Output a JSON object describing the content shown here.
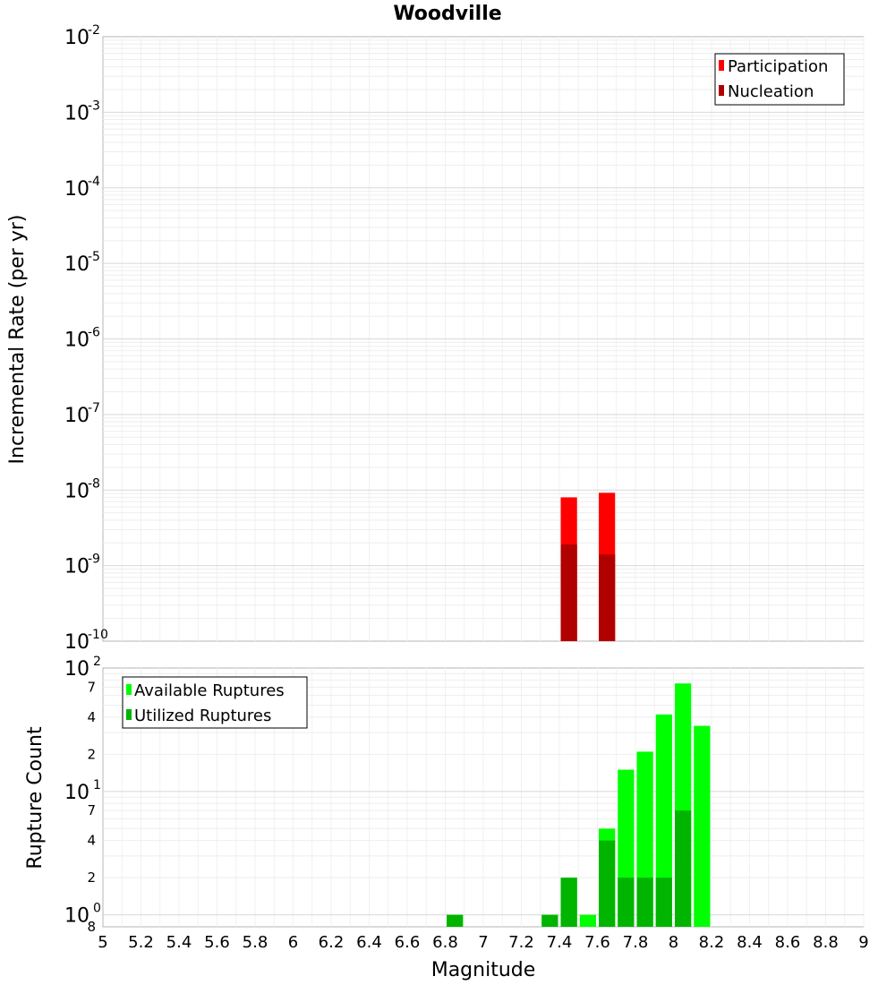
{
  "title": "Woodville",
  "xlabel": "Magnitude",
  "chart_data": [
    {
      "type": "bar",
      "yscale": "log",
      "ylabel": "Incremental Rate (per yr)",
      "ylim": [
        1e-10,
        0.01
      ],
      "xlim": [
        5,
        9
      ],
      "y_tick_labels": [
        {
          "base": "10",
          "exp": "-2"
        },
        {
          "base": "10",
          "exp": "-3"
        },
        {
          "base": "10",
          "exp": "-4"
        },
        {
          "base": "10",
          "exp": "-5"
        },
        {
          "base": "10",
          "exp": "-6"
        },
        {
          "base": "10",
          "exp": "-7"
        },
        {
          "base": "10",
          "exp": "-8"
        },
        {
          "base": "10",
          "exp": "-9"
        },
        {
          "base": "10",
          "exp": "-10"
        }
      ],
      "legend_position": "top-right",
      "series": [
        {
          "name": "Participation",
          "color": "#ff0000",
          "x": [
            7.45,
            7.65
          ],
          "values": [
            8e-09,
            9.2e-09
          ]
        },
        {
          "name": "Nucleation",
          "color": "#b00000",
          "x": [
            7.45,
            7.65
          ],
          "values": [
            1.9e-09,
            1.4e-09
          ]
        }
      ]
    },
    {
      "type": "bar",
      "yscale": "log",
      "ylabel": "Rupture Count",
      "ylim": [
        0.8,
        100
      ],
      "xlim": [
        5,
        9
      ],
      "y_tick_labels": [
        {
          "value": 100,
          "base": "10",
          "exp": "2"
        },
        {
          "value": 70,
          "label": "7"
        },
        {
          "value": 40,
          "label": "4"
        },
        {
          "value": 20,
          "label": "2"
        },
        {
          "value": 10,
          "base": "10",
          "exp": "1"
        },
        {
          "value": 7,
          "label": "7"
        },
        {
          "value": 4,
          "label": "4"
        },
        {
          "value": 2,
          "label": "2"
        },
        {
          "value": 1,
          "base": "10",
          "exp": "0"
        },
        {
          "value": 0.8,
          "label": "8"
        }
      ],
      "legend_position": "top-left",
      "series": [
        {
          "name": "Available Ruptures",
          "color": "#00ff00",
          "x": [
            6.85,
            7.35,
            7.45,
            7.55,
            7.65,
            7.75,
            7.85,
            7.95,
            8.05,
            8.15
          ],
          "values": [
            1,
            1,
            2,
            1,
            5,
            15,
            21,
            42,
            75,
            34
          ]
        },
        {
          "name": "Utilized Ruptures",
          "color": "#00b400",
          "x": [
            6.85,
            7.35,
            7.45,
            7.55,
            7.65,
            7.75,
            7.85,
            7.95,
            8.05,
            8.15
          ],
          "values": [
            1,
            1,
            2,
            0,
            4,
            2,
            2,
            2,
            7,
            0
          ]
        }
      ]
    }
  ],
  "x_tick_labels": [
    "5",
    "5.2",
    "5.4",
    "5.6",
    "5.8",
    "6",
    "6.2",
    "6.4",
    "6.6",
    "6.8",
    "7",
    "7.2",
    "7.4",
    "7.6",
    "7.8",
    "8",
    "8.2",
    "8.4",
    "8.6",
    "8.8",
    "9"
  ]
}
